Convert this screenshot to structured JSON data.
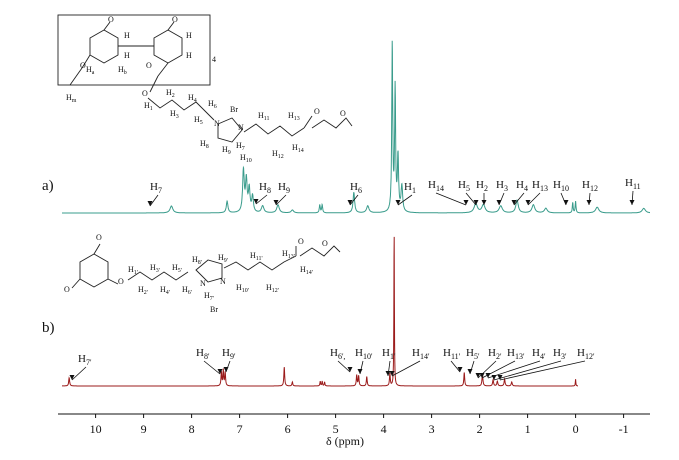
{
  "chart_data": {
    "type": "line",
    "xlabel": "δ (ppm)",
    "xlim": [
      10.7,
      -1.55
    ],
    "reversed_x": true,
    "xticks": [
      "10",
      "9",
      "8",
      "7",
      "6",
      "5",
      "4",
      "3",
      "2",
      "1",
      "0",
      "-1"
    ],
    "xtick_values": [
      10,
      9,
      8,
      7,
      6,
      5,
      4,
      3,
      2,
      1,
      0,
      -1
    ],
    "grid": false,
    "legend": "none",
    "series": [
      {
        "panel": "a)",
        "color": "#3a9c8c",
        "peaks": [
          {
            "ppm": 8.42,
            "height": 0.12,
            "width": 0.035
          },
          {
            "ppm": 7.26,
            "height": 0.2,
            "width": 0.02
          },
          {
            "ppm": 6.92,
            "height": 0.72,
            "width": 0.02
          },
          {
            "ppm": 6.86,
            "height": 0.55,
            "width": 0.02
          },
          {
            "ppm": 6.8,
            "height": 0.4,
            "width": 0.02
          },
          {
            "ppm": 6.73,
            "height": 0.28,
            "width": 0.02
          },
          {
            "ppm": 6.52,
            "height": 0.12,
            "width": 0.03
          },
          {
            "ppm": 6.2,
            "height": 0.14,
            "width": 0.03
          },
          {
            "ppm": 5.9,
            "height": 0.05,
            "width": 0.03
          },
          {
            "ppm": 5.33,
            "height": 0.14,
            "width": 0.012
          },
          {
            "ppm": 5.28,
            "height": 0.14,
            "width": 0.012
          },
          {
            "ppm": 4.62,
            "height": 0.35,
            "width": 0.02
          },
          {
            "ppm": 4.33,
            "height": 0.12,
            "width": 0.03
          },
          {
            "ppm": 3.82,
            "height": 2.9,
            "width": 0.012
          },
          {
            "ppm": 3.76,
            "height": 2.1,
            "width": 0.012
          },
          {
            "ppm": 3.7,
            "height": 0.95,
            "width": 0.015
          },
          {
            "ppm": 3.62,
            "height": 0.45,
            "width": 0.02
          },
          {
            "ppm": 2.08,
            "height": 0.16,
            "width": 0.04
          },
          {
            "ppm": 1.92,
            "height": 0.14,
            "width": 0.04
          },
          {
            "ppm": 1.56,
            "height": 0.12,
            "width": 0.04
          },
          {
            "ppm": 1.22,
            "height": 0.22,
            "width": 0.03
          },
          {
            "ppm": 0.88,
            "height": 0.14,
            "width": 0.035
          },
          {
            "ppm": 0.62,
            "height": 0.08,
            "width": 0.035
          },
          {
            "ppm": 0.06,
            "height": 0.18,
            "width": 0.01
          },
          {
            "ppm": 0.0,
            "height": 0.2,
            "width": 0.01
          },
          {
            "ppm": -0.45,
            "height": 0.1,
            "width": 0.04
          },
          {
            "ppm": -1.42,
            "height": 0.08,
            "width": 0.04
          }
        ]
      },
      {
        "panel": "b)",
        "color": "#9b1b1b",
        "peaks": [
          {
            "ppm": 10.55,
            "height": 0.12,
            "width": 0.012
          },
          {
            "ppm": 7.38,
            "height": 0.2,
            "width": 0.01
          },
          {
            "ppm": 7.34,
            "height": 0.24,
            "width": 0.01
          },
          {
            "ppm": 7.3,
            "height": 0.2,
            "width": 0.01
          },
          {
            "ppm": 6.07,
            "height": 0.28,
            "width": 0.01
          },
          {
            "ppm": 5.9,
            "height": 0.06,
            "width": 0.01
          },
          {
            "ppm": 5.32,
            "height": 0.07,
            "width": 0.008
          },
          {
            "ppm": 5.28,
            "height": 0.07,
            "width": 0.008
          },
          {
            "ppm": 5.23,
            "height": 0.06,
            "width": 0.008
          },
          {
            "ppm": 4.56,
            "height": 0.16,
            "width": 0.01
          },
          {
            "ppm": 4.52,
            "height": 0.15,
            "width": 0.01
          },
          {
            "ppm": 4.35,
            "height": 0.14,
            "width": 0.01
          },
          {
            "ppm": 3.87,
            "height": 0.18,
            "width": 0.01
          },
          {
            "ppm": 3.78,
            "height": 2.3,
            "width": 0.006
          },
          {
            "ppm": 2.32,
            "height": 0.2,
            "width": 0.01
          },
          {
            "ppm": 1.94,
            "height": 0.17,
            "width": 0.012
          },
          {
            "ppm": 1.72,
            "height": 0.09,
            "width": 0.012
          },
          {
            "ppm": 1.63,
            "height": 0.07,
            "width": 0.012
          },
          {
            "ppm": 1.48,
            "height": 0.1,
            "width": 0.012
          },
          {
            "ppm": 1.33,
            "height": 0.06,
            "width": 0.012
          },
          {
            "ppm": 0.0,
            "height": 0.1,
            "width": 0.006
          }
        ]
      }
    ],
    "panel_labels": [
      "a)",
      "b)"
    ],
    "annotations": [
      {
        "panel": "a)",
        "label": "H",
        "sub": "7",
        "ppm": 8.42
      },
      {
        "panel": "a)",
        "label": "H",
        "sub": "8",
        "ppm": 6.52
      },
      {
        "panel": "a)",
        "label": "H",
        "sub": "9",
        "ppm": 6.2
      },
      {
        "panel": "a)",
        "label": "H",
        "sub": "6",
        "ppm": 4.62
      },
      {
        "panel": "a)",
        "label": "H",
        "sub": "1",
        "ppm": 3.62
      },
      {
        "panel": "a)",
        "label": "H",
        "sub": "14",
        "ppm": 2.08
      },
      {
        "panel": "a)",
        "label": "H",
        "sub": "5",
        "ppm": 2.0
      },
      {
        "panel": "a)",
        "label": "H",
        "sub": "2",
        "ppm": 1.82
      },
      {
        "panel": "a)",
        "label": "H",
        "sub": "3",
        "ppm": 1.56
      },
      {
        "panel": "a)",
        "label": "H",
        "sub": "4",
        "ppm": 1.22
      },
      {
        "panel": "a)",
        "label": "H",
        "sub": "13",
        "ppm": 0.88
      },
      {
        "panel": "a)",
        "label": "H",
        "sub": "10",
        "ppm": 0.06
      },
      {
        "panel": "a)",
        "label": "H",
        "sub": "12",
        "ppm": -0.45
      },
      {
        "panel": "a)",
        "label": "H",
        "sub": "11",
        "ppm": -1.42
      },
      {
        "panel": "b)",
        "label": "H",
        "sub": "7'",
        "ppm": 10.55
      },
      {
        "panel": "b)",
        "label": "H",
        "sub": "8'",
        "ppm": 7.38
      },
      {
        "panel": "b)",
        "label": "H",
        "sub": "9'",
        "ppm": 7.3
      },
      {
        "panel": "b)",
        "label": "H",
        "sub": "6',",
        "ppm": 4.56
      },
      {
        "panel": "b)",
        "label": "H",
        "sub": "10'",
        "ppm": 4.35
      },
      {
        "panel": "b)",
        "label": "H",
        "sub": "1'",
        "ppm": 3.87
      },
      {
        "panel": "b)",
        "label": "H",
        "sub": "14'",
        "ppm": 3.78
      },
      {
        "panel": "b)",
        "label": "H",
        "sub": "11'",
        "ppm": 2.32
      },
      {
        "panel": "b)",
        "label": "H",
        "sub": "5'",
        "ppm": 1.94
      },
      {
        "panel": "b)",
        "label": "H",
        "sub": "2'",
        "ppm": 1.72
      },
      {
        "panel": "b)",
        "label": "H",
        "sub": "13'",
        "ppm": 1.63
      },
      {
        "panel": "b)",
        "label": "H",
        "sub": "4'",
        "ppm": 1.48
      },
      {
        "panel": "b)",
        "label": "H",
        "sub": "3'",
        "ppm": 1.4
      },
      {
        "panel": "b)",
        "label": "H",
        "sub": "12'",
        "ppm": 1.33
      }
    ]
  },
  "structure_a": {
    "labels": [
      {
        "t": "O",
        "s": ""
      },
      {
        "t": "O",
        "s": ""
      },
      {
        "t": "H",
        "s": ""
      },
      {
        "t": "H",
        "s": ""
      },
      {
        "t": "H",
        "s": ""
      },
      {
        "t": "H",
        "s": ""
      },
      {
        "t": "H",
        "s": "a"
      },
      {
        "t": "H",
        "s": "b"
      },
      {
        "t": "4",
        "s": ""
      },
      {
        "t": "O",
        "s": ""
      },
      {
        "t": "O",
        "s": ""
      },
      {
        "t": "H",
        "s": "m"
      },
      {
        "t": "O",
        "s": ""
      },
      {
        "t": "H",
        "s": "1"
      },
      {
        "t": "H",
        "s": "2"
      },
      {
        "t": "H",
        "s": "3"
      },
      {
        "t": "H",
        "s": "4"
      },
      {
        "t": "H",
        "s": "5"
      },
      {
        "t": "H",
        "s": "6"
      },
      {
        "t": "Br",
        "s": ""
      },
      {
        "t": "N",
        "s": ""
      },
      {
        "t": "N",
        "s": ""
      },
      {
        "t": "H",
        "s": "8"
      },
      {
        "t": "H",
        "s": "9"
      },
      {
        "t": "H",
        "s": "7"
      },
      {
        "t": "H",
        "s": "10"
      },
      {
        "t": "H",
        "s": "11"
      },
      {
        "t": "H",
        "s": "12"
      },
      {
        "t": "H",
        "s": "13"
      },
      {
        "t": "H",
        "s": "14"
      },
      {
        "t": "O",
        "s": ""
      },
      {
        "t": "O",
        "s": ""
      }
    ]
  },
  "structure_b": {
    "labels": [
      {
        "t": "O",
        "s": ""
      },
      {
        "t": "O",
        "s": ""
      },
      {
        "t": "O",
        "s": ""
      },
      {
        "t": "H",
        "s": "1'"
      },
      {
        "t": "H",
        "s": "2'"
      },
      {
        "t": "H",
        "s": "3'"
      },
      {
        "t": "H",
        "s": "4'"
      },
      {
        "t": "H",
        "s": "5'"
      },
      {
        "t": "H",
        "s": "6'"
      },
      {
        "t": "N",
        "s": ""
      },
      {
        "t": "N",
        "s": ""
      },
      {
        "t": "H",
        "s": "8'"
      },
      {
        "t": "H",
        "s": "9'"
      },
      {
        "t": "H",
        "s": "7'"
      },
      {
        "t": "Br",
        "s": ""
      },
      {
        "t": "H",
        "s": "10'"
      },
      {
        "t": "H",
        "s": "11'"
      },
      {
        "t": "H",
        "s": "12'"
      },
      {
        "t": "H",
        "s": "13'"
      },
      {
        "t": "H",
        "s": "14'"
      },
      {
        "t": "O",
        "s": ""
      },
      {
        "t": "O",
        "s": ""
      }
    ]
  }
}
